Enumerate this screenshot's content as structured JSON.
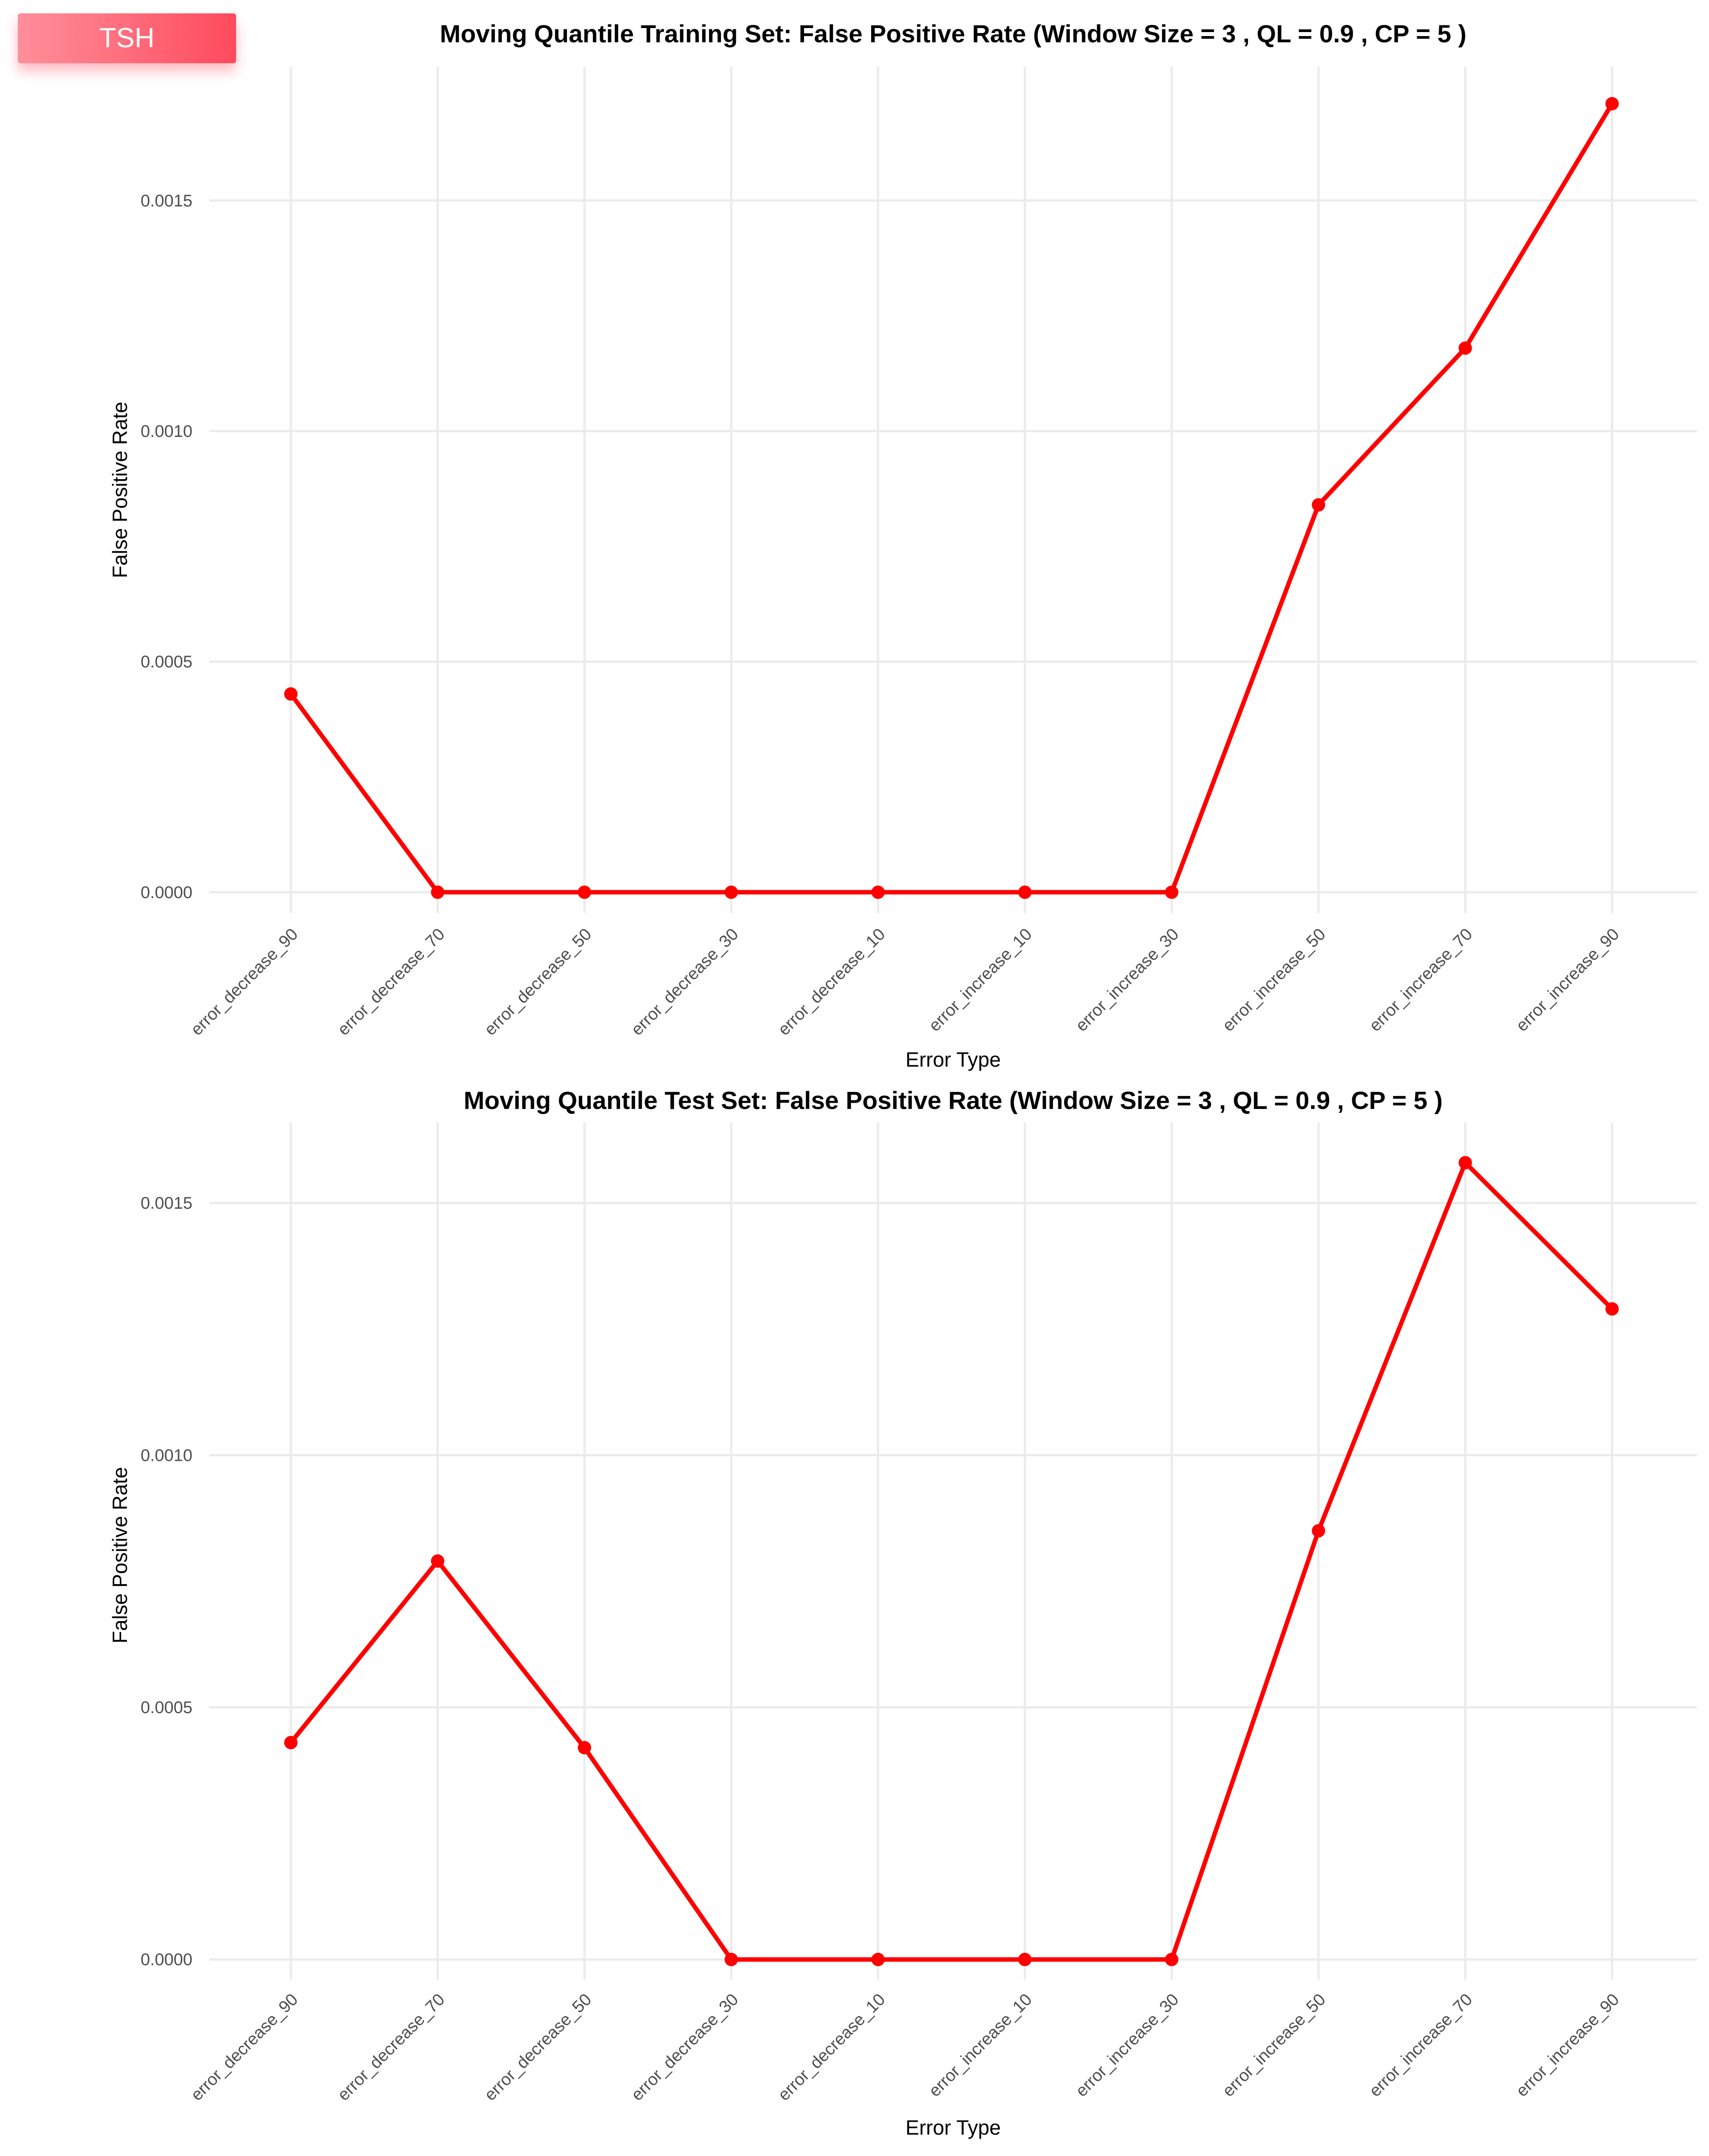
{
  "badge": {
    "label": "TSH"
  },
  "chart_data": [
    {
      "type": "line",
      "title": "Moving Quantile Training Set: False Positive Rate (Window Size = 3 , QL = 0.9 , CP = 5 )",
      "xlabel": "Error Type",
      "ylabel": "False Positive Rate",
      "categories": [
        "error_decrease_90",
        "error_decrease_70",
        "error_decrease_50",
        "error_decrease_30",
        "error_decrease_10",
        "error_increase_10",
        "error_increase_30",
        "error_increase_50",
        "error_increase_70",
        "error_increase_90"
      ],
      "values": [
        0.00043,
        0.0,
        0.0,
        0.0,
        0.0,
        0.0,
        0.0,
        0.00084,
        0.00118,
        0.00171
      ],
      "yticks": [
        0.0,
        0.0005,
        0.001,
        0.0015
      ],
      "ytick_labels": [
        "0.0000",
        "0.0005",
        "0.0010",
        "0.0015"
      ],
      "ylim": [
        -4.5e-05,
        0.00179
      ],
      "grid": true,
      "color": "#ff0000"
    },
    {
      "type": "line",
      "title": "Moving Quantile Test Set: False Positive Rate (Window Size = 3 , QL = 0.9 , CP = 5 )",
      "xlabel": "Error Type",
      "ylabel": "False Positive Rate",
      "categories": [
        "error_decrease_90",
        "error_decrease_70",
        "error_decrease_50",
        "error_decrease_30",
        "error_decrease_10",
        "error_increase_10",
        "error_increase_30",
        "error_increase_50",
        "error_increase_70",
        "error_increase_90"
      ],
      "values": [
        0.00043,
        0.00079,
        0.00042,
        0.0,
        0.0,
        0.0,
        0.0,
        0.00085,
        0.00158,
        0.00129
      ],
      "yticks": [
        0.0,
        0.0005,
        0.001,
        0.0015
      ],
      "ytick_labels": [
        "0.0000",
        "0.0005",
        "0.0010",
        "0.0015"
      ],
      "ylim": [
        -4e-05,
        0.00166
      ],
      "grid": true,
      "color": "#ff0000"
    }
  ]
}
